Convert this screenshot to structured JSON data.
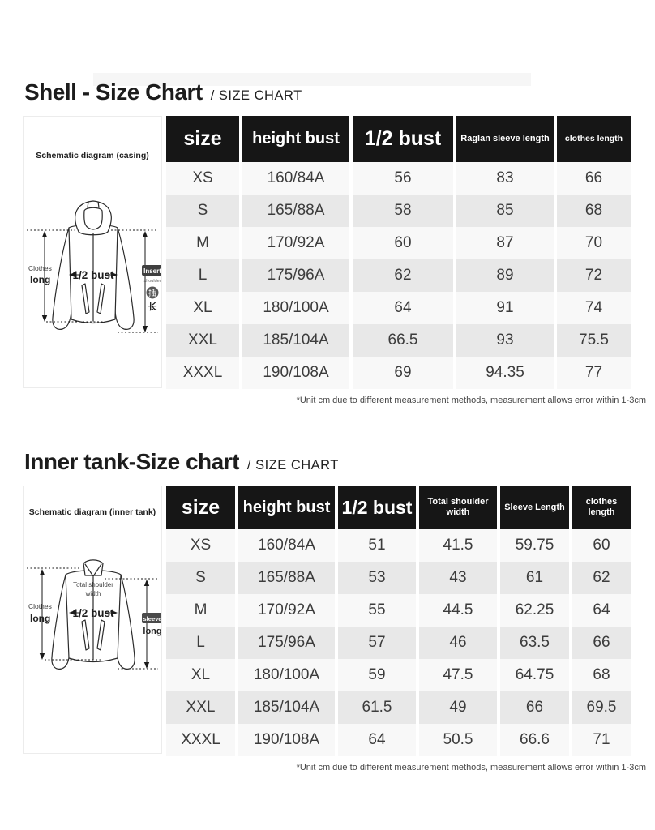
{
  "colors": {
    "header_bg": "#161616",
    "header_text": "#ffffff",
    "row_light": "#f8f8f8",
    "row_alt": "#e8e8e8",
    "body_text": "#3c3c3c"
  },
  "sections": [
    {
      "title": "Shell - Size Chart",
      "subtitle": "/ SIZE CHART",
      "diagram": {
        "caption": "Schematic diagram (casing)",
        "labels": {
          "clothes": "Clothes",
          "long": "long",
          "half_bust": "1/2 bust",
          "insert": "Insert",
          "shoulder": "shoulder",
          "cn_top": "插",
          "cn_bottom": "长"
        }
      },
      "table": {
        "headers": [
          "size",
          "height bust",
          "1/2 bust",
          "Raglan sleeve length",
          "clothes length"
        ],
        "rows": [
          [
            "XS",
            "160/84A",
            "56",
            "83",
            "66"
          ],
          [
            "S",
            "165/88A",
            "58",
            "85",
            "68"
          ],
          [
            "M",
            "170/92A",
            "60",
            "87",
            "70"
          ],
          [
            "L",
            "175/96A",
            "62",
            "89",
            "72"
          ],
          [
            "XL",
            "180/100A",
            "64",
            "91",
            "74"
          ],
          [
            "XXL",
            "185/104A",
            "66.5",
            "93",
            "75.5"
          ],
          [
            "XXXL",
            "190/108A",
            "69",
            "94.35",
            "77"
          ]
        ]
      },
      "footnote": "*Unit cm due to different measurement methods, measurement allows error within 1-3cm"
    },
    {
      "title": "Inner tank-Size chart",
      "subtitle": "/ SIZE CHART",
      "diagram": {
        "caption": "Schematic diagram (inner tank)",
        "labels": {
          "clothes": "Clothes",
          "long": "long",
          "half_bust": "1/2 bust",
          "total_shoulder_1": "Total shoulder",
          "total_shoulder_2": "width",
          "sleeve": "sleeve",
          "sleeve_long": "long"
        }
      },
      "table": {
        "headers": [
          "size",
          "height bust",
          "1/2 bust",
          "Total shoulder width",
          "Sleeve Length",
          "clothes length"
        ],
        "rows": [
          [
            "XS",
            "160/84A",
            "51",
            "41.5",
            "59.75",
            "60"
          ],
          [
            "S",
            "165/88A",
            "53",
            "43",
            "61",
            "62"
          ],
          [
            "M",
            "170/92A",
            "55",
            "44.5",
            "62.25",
            "64"
          ],
          [
            "L",
            "175/96A",
            "57",
            "46",
            "63.5",
            "66"
          ],
          [
            "XL",
            "180/100A",
            "59",
            "47.5",
            "64.75",
            "68"
          ],
          [
            "XXL",
            "185/104A",
            "61.5",
            "49",
            "66",
            "69.5"
          ],
          [
            "XXXL",
            "190/108A",
            "64",
            "50.5",
            "66.6",
            "71"
          ]
        ]
      },
      "footnote": "*Unit cm due to different measurement methods, measurement allows error within 1-3cm"
    }
  ]
}
